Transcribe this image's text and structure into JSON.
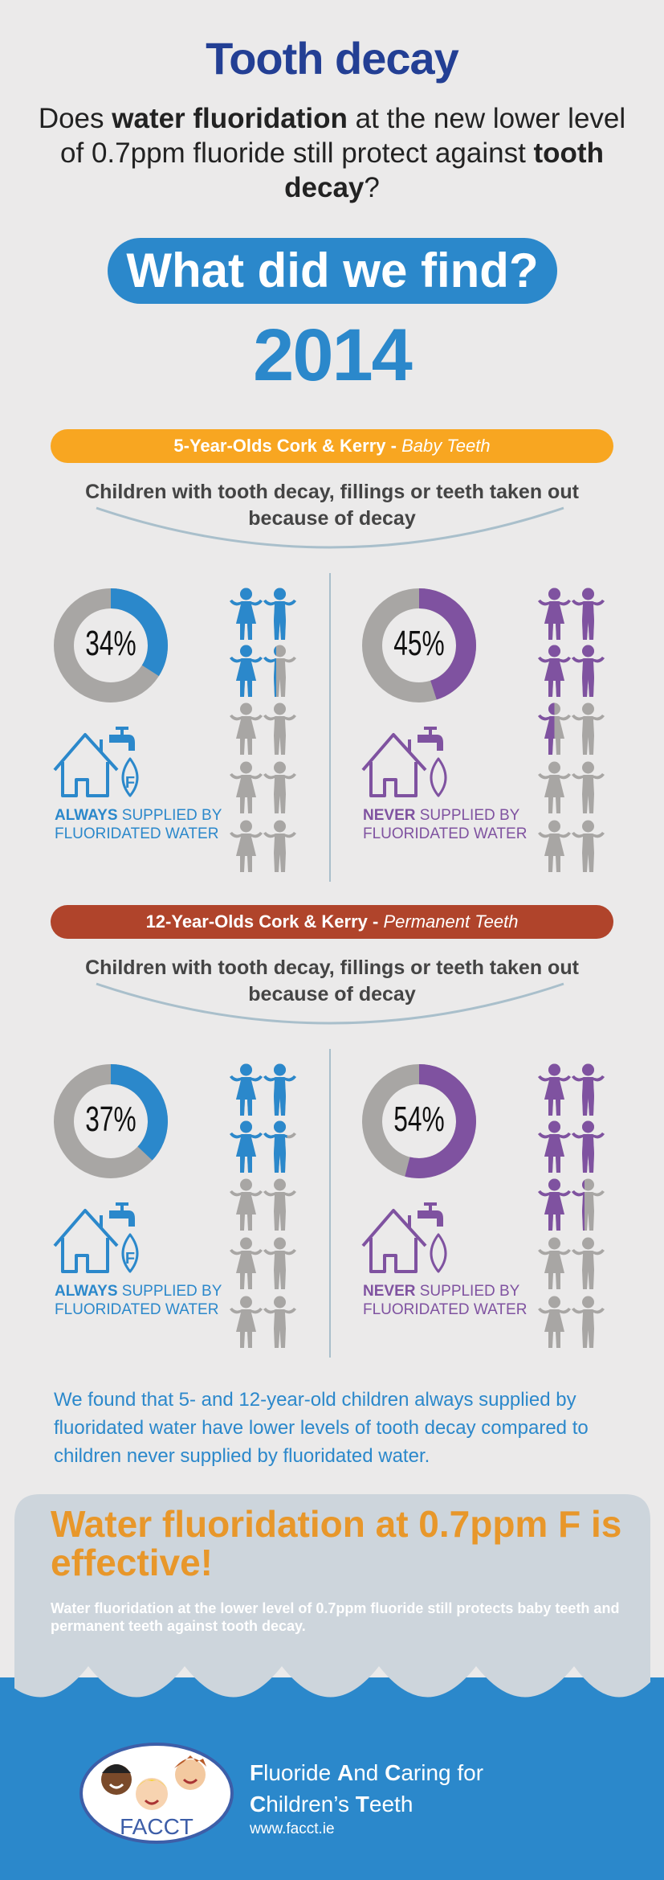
{
  "header": {
    "title": "Tooth decay",
    "q_1": "Does ",
    "q_2": "water fluoridation",
    "q_3": " at the new lower level of 0.7ppm fluoride still protect against ",
    "q_4": "tooth decay",
    "q_5": "?",
    "pill": "What did we find?",
    "year": "2014"
  },
  "colors": {
    "blue": "#2b88cb",
    "purple": "#7f52a0",
    "grey": "#a8a6a4",
    "navy": "#233f94",
    "orange_bar": "#f8a621",
    "red_bar": "#b0442b"
  },
  "sections": [
    {
      "bar_main": "5-Year-Olds Cork & Kerry",
      "bar_sep": " - ",
      "bar_italic": "Baby Teeth",
      "heading": "Children with tooth decay, fillings or teeth taken out because of decay",
      "always": {
        "percent": 34,
        "label": "34%",
        "bold": "ALWAYS",
        "rest": " SUPPLIED BY FLUORIDATED WATER"
      },
      "never": {
        "percent": 45,
        "label": "45%",
        "bold": "NEVER",
        "rest": " SUPPLIED BY FLUORIDATED WATER"
      }
    },
    {
      "bar_main": "12-Year-Olds Cork & Kerry",
      "bar_sep": " - ",
      "bar_italic": "Permanent Teeth",
      "heading": "Children with tooth decay, fillings or teeth taken out because of decay",
      "always": {
        "percent": 37,
        "label": "37%",
        "bold": "ALWAYS",
        "rest": " SUPPLIED BY FLUORIDATED WATER"
      },
      "never": {
        "percent": 54,
        "label": "54%",
        "bold": "NEVER",
        "rest": " SUPPLIED BY FLUORIDATED WATER"
      }
    }
  ],
  "summary": "We found that 5- and 12-year-old children always supplied by fluoridated water have lower levels of tooth decay compared to children never supplied by fluoridated water.",
  "conclusion": {
    "headline": "Water fluoridation at 0.7ppm F is effective!",
    "body": "Water fluoridation at the lower level of 0.7ppm fluoride still protects baby teeth and permanent teeth against tooth decay."
  },
  "footer": {
    "logo_text": "FACCT",
    "n1": "F",
    "n2": "luoride ",
    "n3": "A",
    "n4": "nd ",
    "n5": "C",
    "n6": "aring for",
    "n7": "C",
    "n8": "hildren’s ",
    "n9": "T",
    "n10": "eeth",
    "url": "www.facct.ie"
  }
}
